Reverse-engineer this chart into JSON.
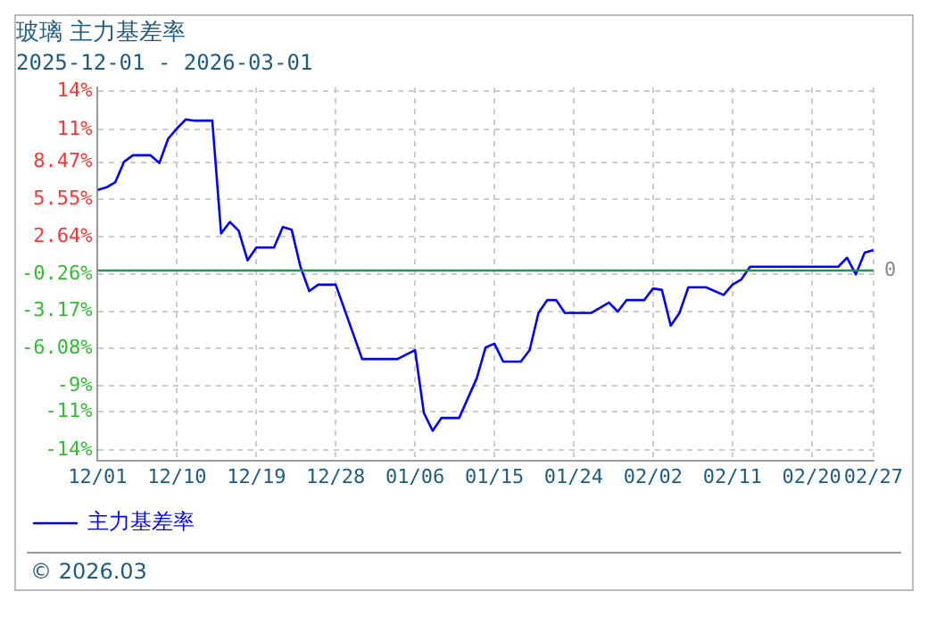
{
  "chart_data": {
    "type": "line",
    "title": "玻璃 主力基差率",
    "subtitle": "2025-12-01 - 2026-03-01",
    "x": [
      "2025-12-01",
      "2025-12-02",
      "2025-12-03",
      "2025-12-04",
      "2025-12-05",
      "2025-12-07",
      "2025-12-08",
      "2025-12-09",
      "2025-12-10",
      "2025-12-11",
      "2025-12-12",
      "2025-12-14",
      "2025-12-15",
      "2025-12-16",
      "2025-12-17",
      "2025-12-18",
      "2025-12-19",
      "2025-12-21",
      "2025-12-22",
      "2025-12-23",
      "2025-12-24",
      "2025-12-25",
      "2025-12-26",
      "2025-12-28",
      "2025-12-31",
      "2026-01-04",
      "2026-01-06",
      "2026-01-07",
      "2026-01-08",
      "2026-01-09",
      "2026-01-11",
      "2026-01-13",
      "2026-01-14",
      "2026-01-15",
      "2026-01-16",
      "2026-01-18",
      "2026-01-19",
      "2026-01-20",
      "2026-01-21",
      "2026-01-22",
      "2026-01-23",
      "2026-01-26",
      "2026-01-28",
      "2026-01-29",
      "2026-01-30",
      "2026-02-01",
      "2026-02-02",
      "2026-02-03",
      "2026-02-04",
      "2026-02-05",
      "2026-02-06",
      "2026-02-08",
      "2026-02-10",
      "2026-02-11",
      "2026-02-12",
      "2026-02-13",
      "2026-02-23",
      "2026-02-24",
      "2026-02-25",
      "2026-02-26",
      "2026-02-27"
    ],
    "series": [
      {
        "name": "主力基差率",
        "color": "#0000ff",
        "values": [
          6.3,
          6.5,
          6.9,
          8.5,
          9.0,
          9.0,
          8.4,
          10.3,
          11.1,
          11.8,
          11.7,
          11.7,
          2.9,
          3.8,
          3.1,
          0.8,
          1.8,
          1.8,
          3.4,
          3.2,
          0.3,
          -1.6,
          -1.1,
          -1.1,
          -6.9,
          -6.9,
          -6.2,
          -11.1,
          -12.5,
          -11.5,
          -11.5,
          -8.4,
          -6.0,
          -5.7,
          -7.1,
          -7.1,
          -6.2,
          -3.3,
          -2.3,
          -2.3,
          -3.3,
          -3.3,
          -2.5,
          -3.2,
          -2.3,
          -2.3,
          -1.4,
          -1.5,
          -4.3,
          -3.3,
          -1.3,
          -1.3,
          -1.9,
          -1.1,
          -0.7,
          0.3,
          0.3,
          1.0,
          -0.3,
          1.4,
          1.6
        ]
      }
    ],
    "xlim": [
      "2025-12-01",
      "2026-02-27"
    ],
    "xticks": [
      {
        "value": "2025-12-01",
        "label": "12/01"
      },
      {
        "value": "2025-12-10",
        "label": "12/10"
      },
      {
        "value": "2025-12-19",
        "label": "12/19"
      },
      {
        "value": "2025-12-28",
        "label": "12/28"
      },
      {
        "value": "2026-01-06",
        "label": "01/06"
      },
      {
        "value": "2026-01-15",
        "label": "01/15"
      },
      {
        "value": "2026-01-24",
        "label": "01/24"
      },
      {
        "value": "2026-02-02",
        "label": "02/02"
      },
      {
        "value": "2026-02-11",
        "label": "02/11"
      },
      {
        "value": "2026-02-20",
        "label": "02/20"
      },
      {
        "value": "2026-02-27",
        "label": "02/27"
      }
    ],
    "ylim": [
      -14.81,
      14.29
    ],
    "yticks": [
      {
        "value": 14,
        "label": "14%"
      },
      {
        "value": 11,
        "label": "11%"
      },
      {
        "value": 8.47,
        "label": "8.47%"
      },
      {
        "value": 5.55,
        "label": "5.55%"
      },
      {
        "value": 2.64,
        "label": "2.64%"
      },
      {
        "value": -0.26,
        "label": "-0.26%"
      },
      {
        "value": -3.17,
        "label": "-3.17%"
      },
      {
        "value": -6.08,
        "label": "-6.08%"
      },
      {
        "value": -9,
        "label": "-9%"
      },
      {
        "value": -11,
        "label": "-11%"
      },
      {
        "value": -14,
        "label": "-14%"
      }
    ],
    "ref_lines": [
      {
        "axis": "y",
        "value": 0,
        "label": "0",
        "color": "#2e8b57"
      }
    ],
    "grid": true,
    "legend": "bottom left",
    "marker": "none",
    "line_style": "solid",
    "annotations": [
      "© 2026.03"
    ]
  }
}
